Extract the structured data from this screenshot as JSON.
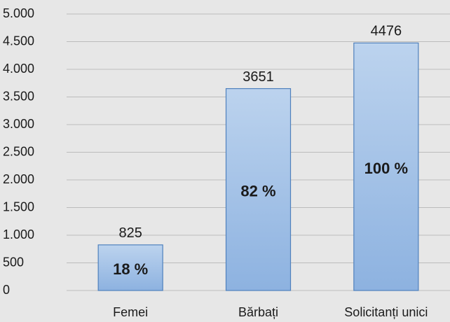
{
  "chart_data": {
    "type": "bar",
    "categories": [
      "Femei",
      "Bărbați",
      "Solicitanți unici"
    ],
    "values": [
      825,
      3651,
      4476
    ],
    "annotations": [
      "18 %",
      "82 %",
      "100 %"
    ],
    "color": "#a3c1e8",
    "ylim": [
      0,
      5000
    ],
    "yticks": [
      0,
      500,
      {
        "value": 1000,
        "label": "1.000"
      },
      {
        "value": 1500,
        "label": "1.500"
      },
      {
        "value": 2000,
        "label": "2.000"
      },
      {
        "value": 2500,
        "label": "2.500"
      },
      {
        "value": 3000,
        "label": "3.000"
      },
      {
        "value": 3500,
        "label": "3.500"
      },
      {
        "value": 4000,
        "label": "4.000"
      },
      {
        "value": 4500,
        "label": "4.500"
      },
      {
        "value": 5000,
        "label": "5.000"
      }
    ],
    "grid": true
  }
}
